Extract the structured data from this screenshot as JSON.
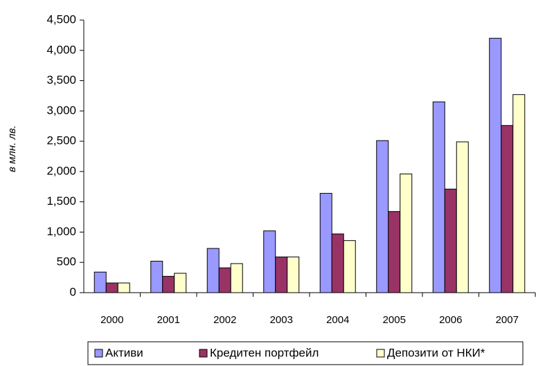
{
  "chart_data": {
    "type": "bar",
    "y_label": "в млн. лв.",
    "categories": [
      "2000",
      "2001",
      "2002",
      "2003",
      "2004",
      "2005",
      "2006",
      "2007"
    ],
    "series": [
      {
        "name": "Активи",
        "color": "#9999ff",
        "values": [
          340,
          520,
          730,
          1020,
          1640,
          2510,
          3150,
          4200
        ]
      },
      {
        "name": "Кредитен портфейл",
        "color": "#993366",
        "values": [
          160,
          270,
          410,
          590,
          970,
          1340,
          1710,
          2760
        ]
      },
      {
        "name": "Депозити от НКИ*",
        "color": "#ffffcc",
        "values": [
          160,
          320,
          480,
          590,
          860,
          1960,
          2490,
          3270
        ]
      }
    ],
    "ylim": [
      0,
      4500
    ],
    "yticks": [
      0,
      500,
      {
        "value": 1000,
        "label": "1,000"
      },
      {
        "value": 1500,
        "label": "1,500"
      },
      {
        "value": 2000,
        "label": "2,000"
      },
      {
        "value": 2500,
        "label": "2,500"
      },
      {
        "value": 3000,
        "label": "3,000"
      },
      {
        "value": 3500,
        "label": "3,500"
      },
      {
        "value": 4000,
        "label": "4,000"
      },
      {
        "value": 4500,
        "label": "4,500"
      }
    ],
    "grid": false,
    "legend": "bottom"
  }
}
